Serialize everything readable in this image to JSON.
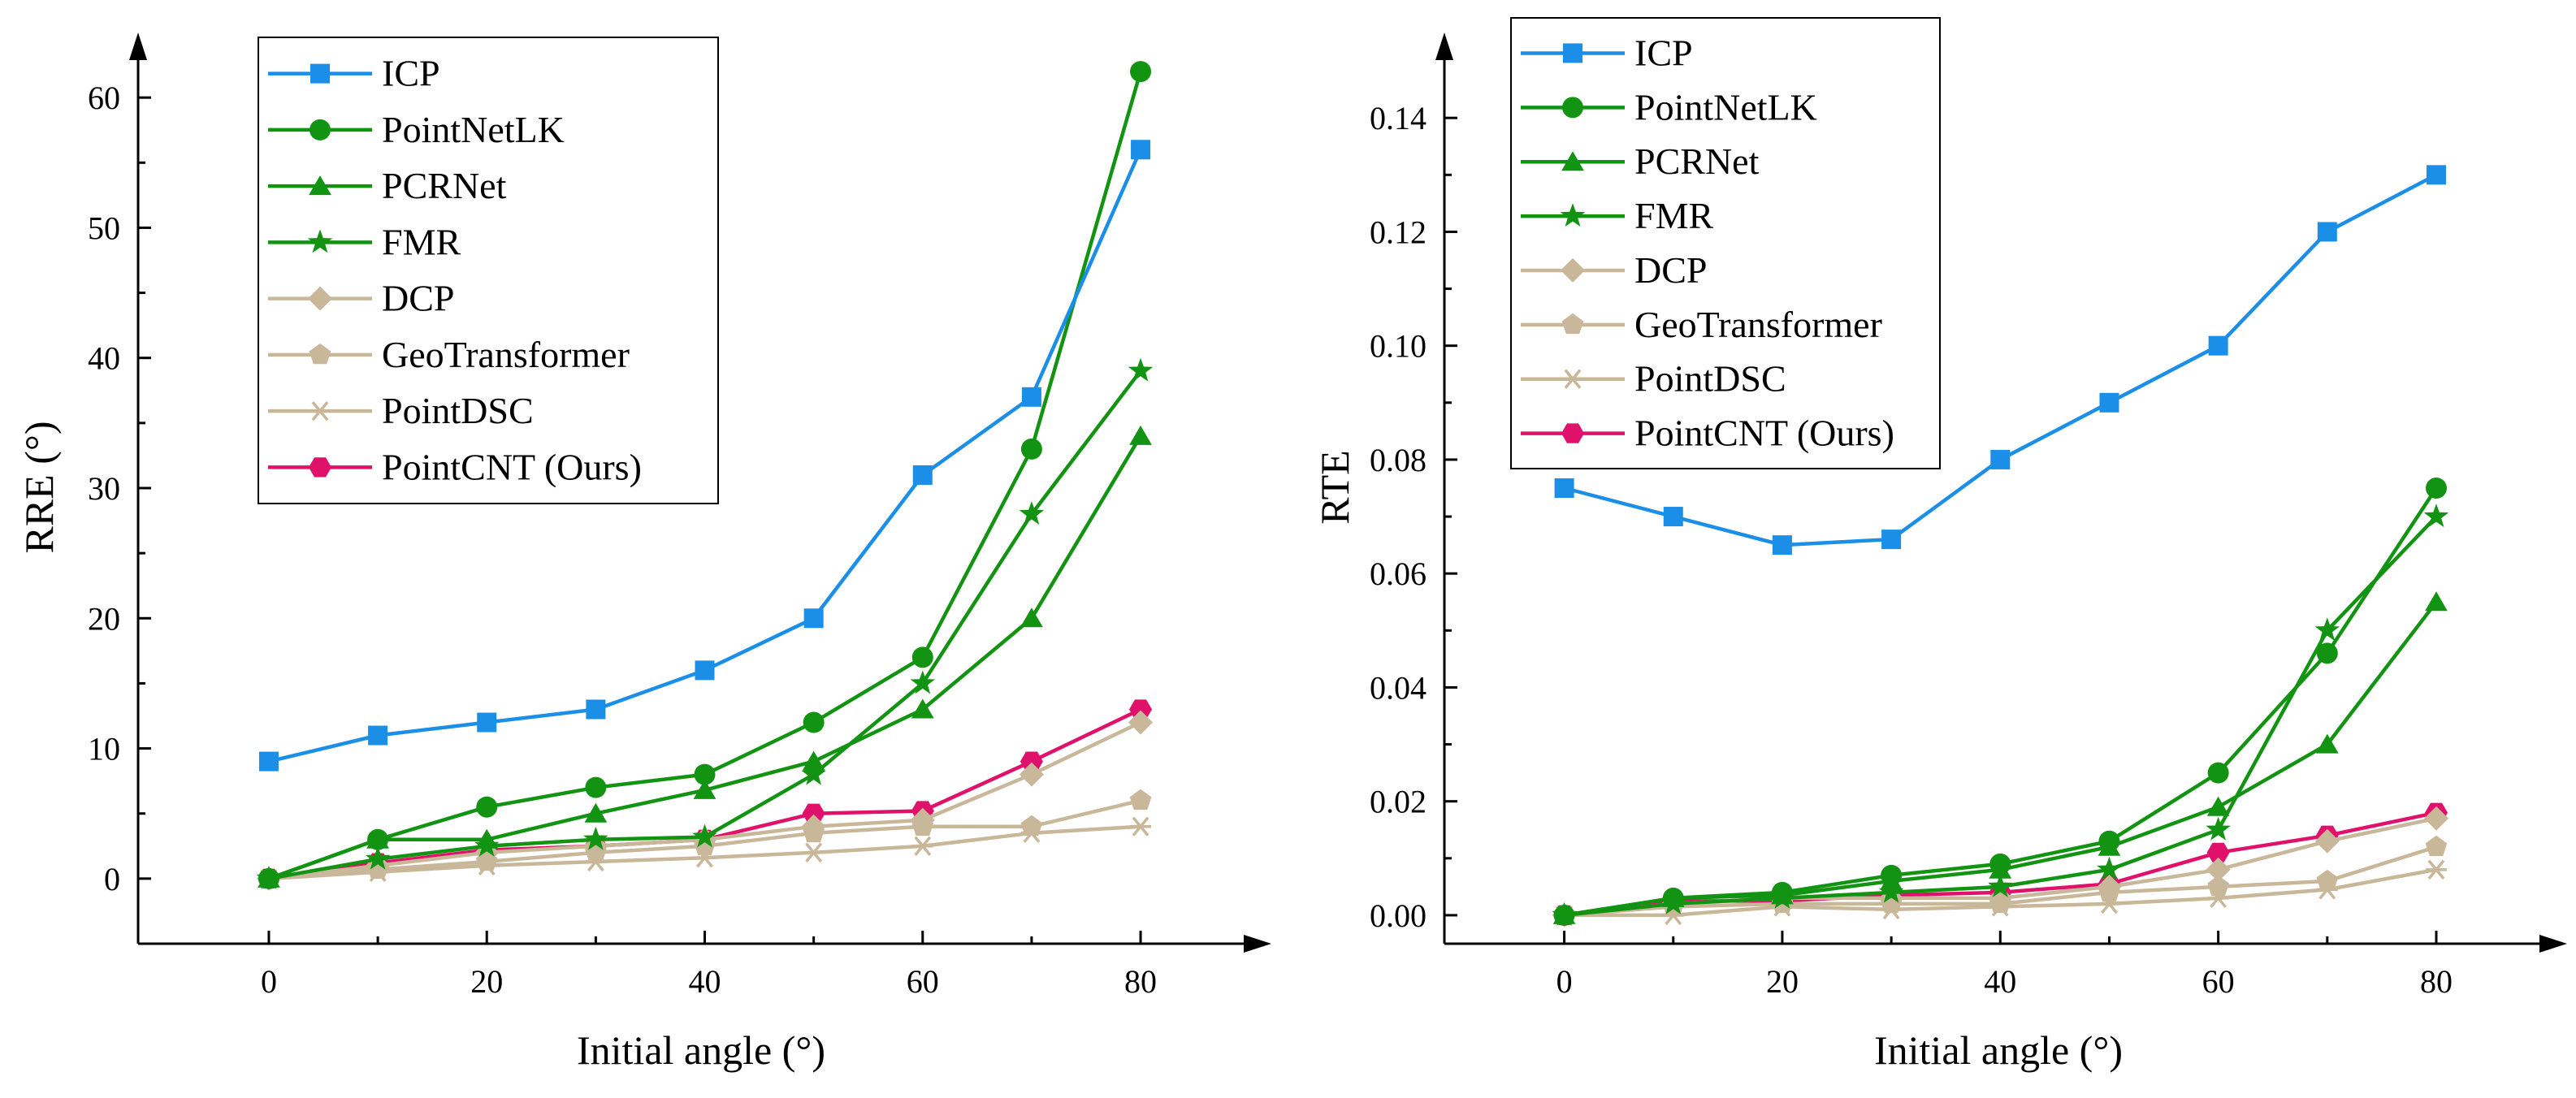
{
  "chart_data": [
    {
      "type": "line",
      "title": "",
      "xlabel": "Initial angle (°)",
      "ylabel": "RRE (°)",
      "x": [
        0,
        10,
        20,
        30,
        40,
        50,
        60,
        70,
        80
      ],
      "xticks": [
        "0",
        "20",
        "40",
        "60",
        "80"
      ],
      "yticks": [
        "0",
        "10",
        "20",
        "30",
        "40",
        "50",
        "60"
      ],
      "xlim": [
        -12,
        92
      ],
      "ylim": [
        -5,
        65
      ],
      "legend_position": "top-left",
      "series": [
        {
          "name": "ICP",
          "color": "#1b8fe8",
          "marker": "square",
          "values": [
            9,
            11,
            12,
            13,
            16,
            20,
            31,
            37,
            56
          ]
        },
        {
          "name": "PointNetLK",
          "color": "#129312",
          "marker": "circle",
          "values": [
            0,
            3,
            5.5,
            7,
            8,
            12,
            17,
            33,
            62
          ]
        },
        {
          "name": "PCRNet",
          "color": "#129312",
          "marker": "triangle",
          "values": [
            0,
            3,
            3,
            5,
            6.8,
            9,
            13,
            20,
            34
          ]
        },
        {
          "name": "FMR",
          "color": "#129312",
          "marker": "star",
          "values": [
            0,
            1.5,
            2.5,
            3,
            3.2,
            8,
            15,
            28,
            39
          ]
        },
        {
          "name": "DCP",
          "color": "#c9b79a",
          "marker": "diamond",
          "values": [
            0,
            1,
            2,
            2.5,
            3,
            4,
            4.5,
            8,
            12
          ]
        },
        {
          "name": "GeoTransformer",
          "color": "#c9b79a",
          "marker": "pentagon",
          "values": [
            0,
            0.7,
            1.3,
            2,
            2.5,
            3.5,
            4,
            4,
            6
          ]
        },
        {
          "name": "PointDSC",
          "color": "#c9b79a",
          "marker": "asterisk",
          "values": [
            0,
            0.5,
            1,
            1.3,
            1.6,
            2,
            2.5,
            3.5,
            4
          ]
        },
        {
          "name": "PointCNT (Ours)",
          "color": "#e0116b",
          "marker": "hexagon",
          "values": [
            0,
            1.2,
            2.2,
            2.5,
            3,
            5,
            5.2,
            9,
            13
          ]
        }
      ]
    },
    {
      "type": "line",
      "title": "",
      "xlabel": "Initial angle (°)",
      "ylabel": "RTE",
      "x": [
        0,
        10,
        20,
        30,
        40,
        50,
        60,
        70,
        80
      ],
      "xticks": [
        "0",
        "20",
        "40",
        "60",
        "80"
      ],
      "yticks": [
        "0.00",
        "0.02",
        "0.04",
        "0.06",
        "0.08",
        "0.10",
        "0.12",
        "0.14"
      ],
      "xlim": [
        -11,
        92
      ],
      "ylim": [
        -0.005,
        0.155
      ],
      "legend_position": "top-left",
      "series": [
        {
          "name": "ICP",
          "color": "#1b8fe8",
          "marker": "square",
          "values": [
            0.075,
            0.07,
            0.065,
            0.066,
            0.08,
            0.09,
            0.1,
            0.12,
            0.13
          ]
        },
        {
          "name": "PointNetLK",
          "color": "#129312",
          "marker": "circle",
          "values": [
            0,
            0.003,
            0.004,
            0.007,
            0.009,
            0.013,
            0.025,
            0.046,
            0.075
          ]
        },
        {
          "name": "PCRNet",
          "color": "#129312",
          "marker": "triangle",
          "values": [
            0,
            0.003,
            0.0035,
            0.006,
            0.008,
            0.012,
            0.019,
            0.03,
            0.055
          ]
        },
        {
          "name": "FMR",
          "color": "#129312",
          "marker": "star",
          "values": [
            0,
            0.002,
            0.003,
            0.004,
            0.005,
            0.008,
            0.015,
            0.05,
            0.07
          ]
        },
        {
          "name": "DCP",
          "color": "#c9b79a",
          "marker": "diamond",
          "values": [
            0,
            0.002,
            0.003,
            0.003,
            0.003,
            0.005,
            0.008,
            0.013,
            0.017
          ]
        },
        {
          "name": "GeoTransformer",
          "color": "#c9b79a",
          "marker": "pentagon",
          "values": [
            0,
            0.0015,
            0.002,
            0.002,
            0.002,
            0.004,
            0.005,
            0.006,
            0.012
          ]
        },
        {
          "name": "PointDSC",
          "color": "#c9b79a",
          "marker": "asterisk",
          "values": [
            0,
            0,
            0.0015,
            0.001,
            0.0015,
            0.002,
            0.003,
            0.0045,
            0.008
          ]
        },
        {
          "name": "PointCNT (Ours)",
          "color": "#e0116b",
          "marker": "hexagon",
          "values": [
            0,
            0.0025,
            0.0025,
            0.0035,
            0.004,
            0.0055,
            0.011,
            0.014,
            0.018
          ]
        }
      ]
    }
  ]
}
